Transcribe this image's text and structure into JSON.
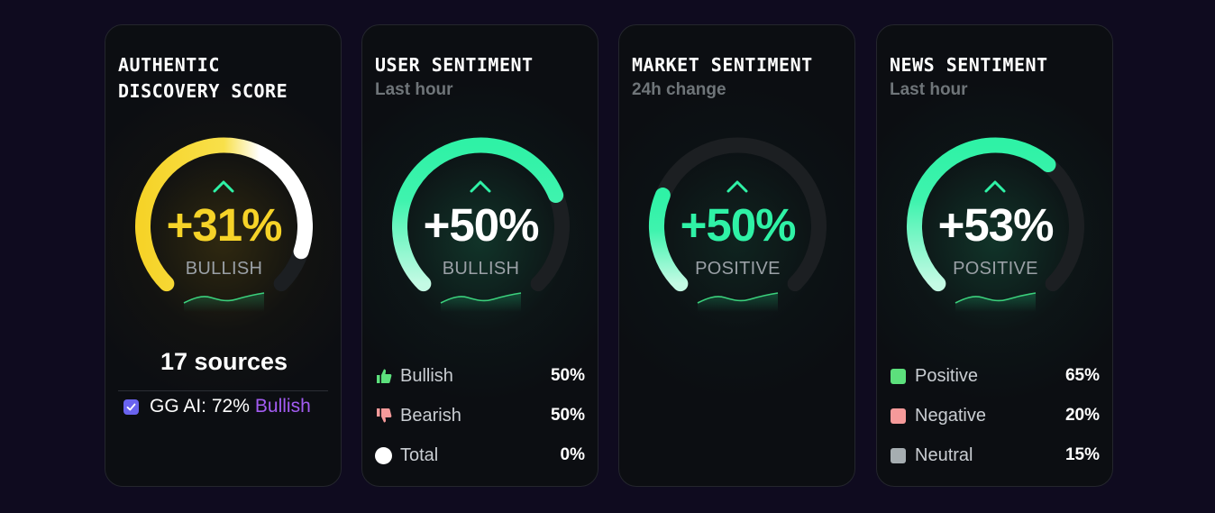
{
  "colors": {
    "background": "#0f0b1f",
    "gold": "#f6d328",
    "green": "#2ff2a6",
    "mint": "#aaf5d6",
    "purple": "#a35cf2"
  },
  "cards": [
    {
      "title": "AUTHENTIC\nDISCOVERY SCORE",
      "value": "+31%",
      "label": "BULLISH",
      "gauge_fraction": 0.9,
      "sources": "17 sources",
      "ai": {
        "text": "GG AI: 72%",
        "sentiment": "Bullish",
        "icon": "checkbox-icon"
      }
    },
    {
      "title": "USER SENTIMENT",
      "subtitle": "Last hour",
      "value": "+50%",
      "label": "BULLISH",
      "gauge_fraction": 0.75,
      "legend": [
        {
          "label": "Bullish",
          "pct": "50%",
          "icon": "thumbs-up-icon",
          "color": "#5ce07c"
        },
        {
          "label": "Bearish",
          "pct": "50%",
          "icon": "thumbs-down-icon",
          "color": "#f59a9a"
        },
        {
          "label": "Total",
          "pct": "0%",
          "icon": "dot-icon",
          "color": "#ffffff"
        }
      ]
    },
    {
      "title": "MARKET SENTIMENT",
      "subtitle": "24h change",
      "value": "+50%",
      "label": "POSITIVE",
      "gauge_fraction": 0.25
    },
    {
      "title": "NEWS SENTIMENT",
      "subtitle": "Last hour",
      "value": "+53%",
      "label": "POSITIVE",
      "gauge_fraction": 0.65,
      "legend": [
        {
          "label": "Positive",
          "pct": "65%",
          "icon": "square-icon",
          "color": "#5ce07c"
        },
        {
          "label": "Negative",
          "pct": "20%",
          "icon": "square-icon",
          "color": "#f59a9a"
        },
        {
          "label": "Neutral",
          "pct": "15%",
          "icon": "square-icon",
          "color": "#a6adb1"
        }
      ]
    }
  ]
}
